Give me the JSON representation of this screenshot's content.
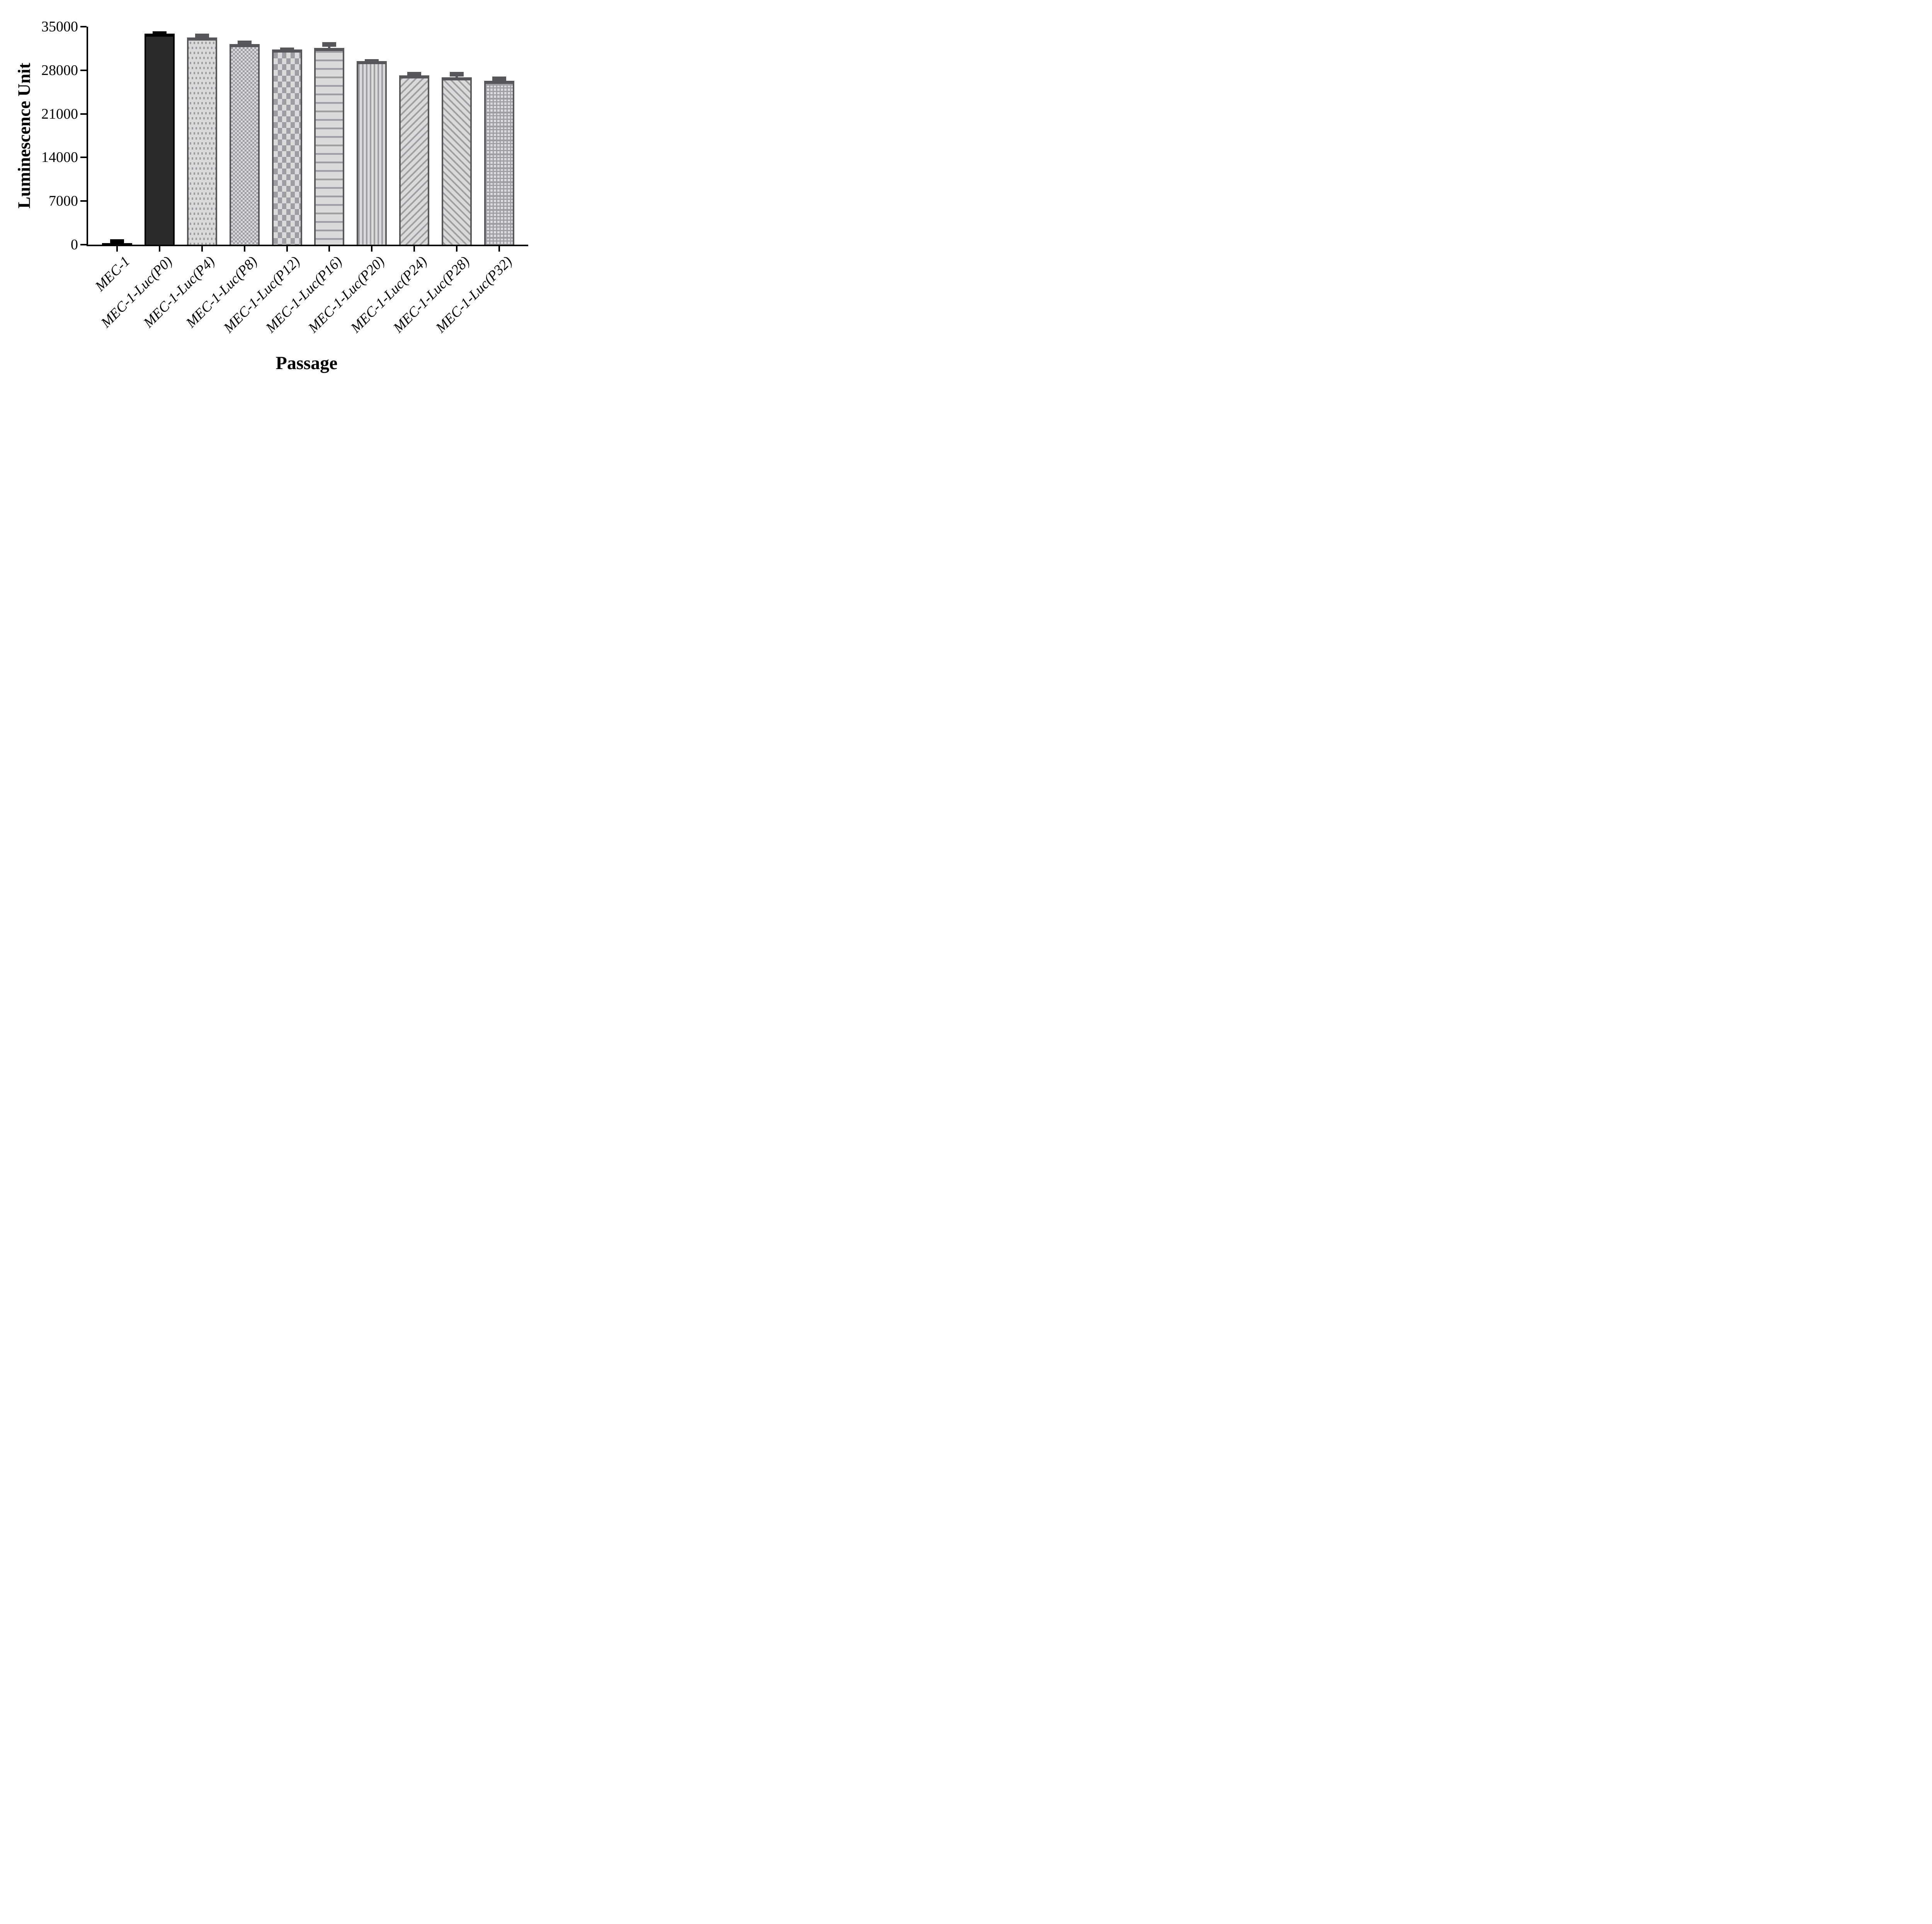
{
  "figure": {
    "background": "#ffffff",
    "axis_color": "#000000"
  },
  "chart_data": {
    "type": "bar",
    "title": "",
    "xlabel": "Passage",
    "ylabel": "Luminescence Unit",
    "ylim": [
      0,
      35000
    ],
    "y_tick_step": 7000,
    "y_ticks": [
      "0",
      "7000",
      "14000",
      "21000",
      "28000",
      "35000"
    ],
    "grid": false,
    "legend": "none",
    "categories": [
      "MEC-1",
      "MEC-1-Luc(P0)",
      "MEC-1-Luc(P4)",
      "MEC-1-Luc(P8)",
      "MEC-1-Luc(P12)",
      "MEC-1-Luc(P16)",
      "MEC-1-Luc(P20)",
      "MEC-1-Luc(P24)",
      "MEC-1-Luc(P28)",
      "MEC-1-Luc(P32)"
    ],
    "values": [
      260,
      33900,
      33250,
      32200,
      31350,
      31600,
      29450,
      27200,
      26850,
      26300
    ],
    "error_sd": [
      150,
      380,
      650,
      550,
      330,
      900,
      330,
      550,
      900,
      680
    ],
    "error_type": "SD upper whisker with cap",
    "patterns": [
      "solid-black",
      "solid-dark",
      "dots",
      "checker-small",
      "checker-large",
      "hlines",
      "vlines",
      "diag-up",
      "diag-down",
      "grid"
    ],
    "style": {
      "bar_fill": "#dadada",
      "pattern_color": "#9d9da3",
      "border_color": "#57575b",
      "dark_fill": "#2b2b2c",
      "black": "#000000"
    }
  }
}
